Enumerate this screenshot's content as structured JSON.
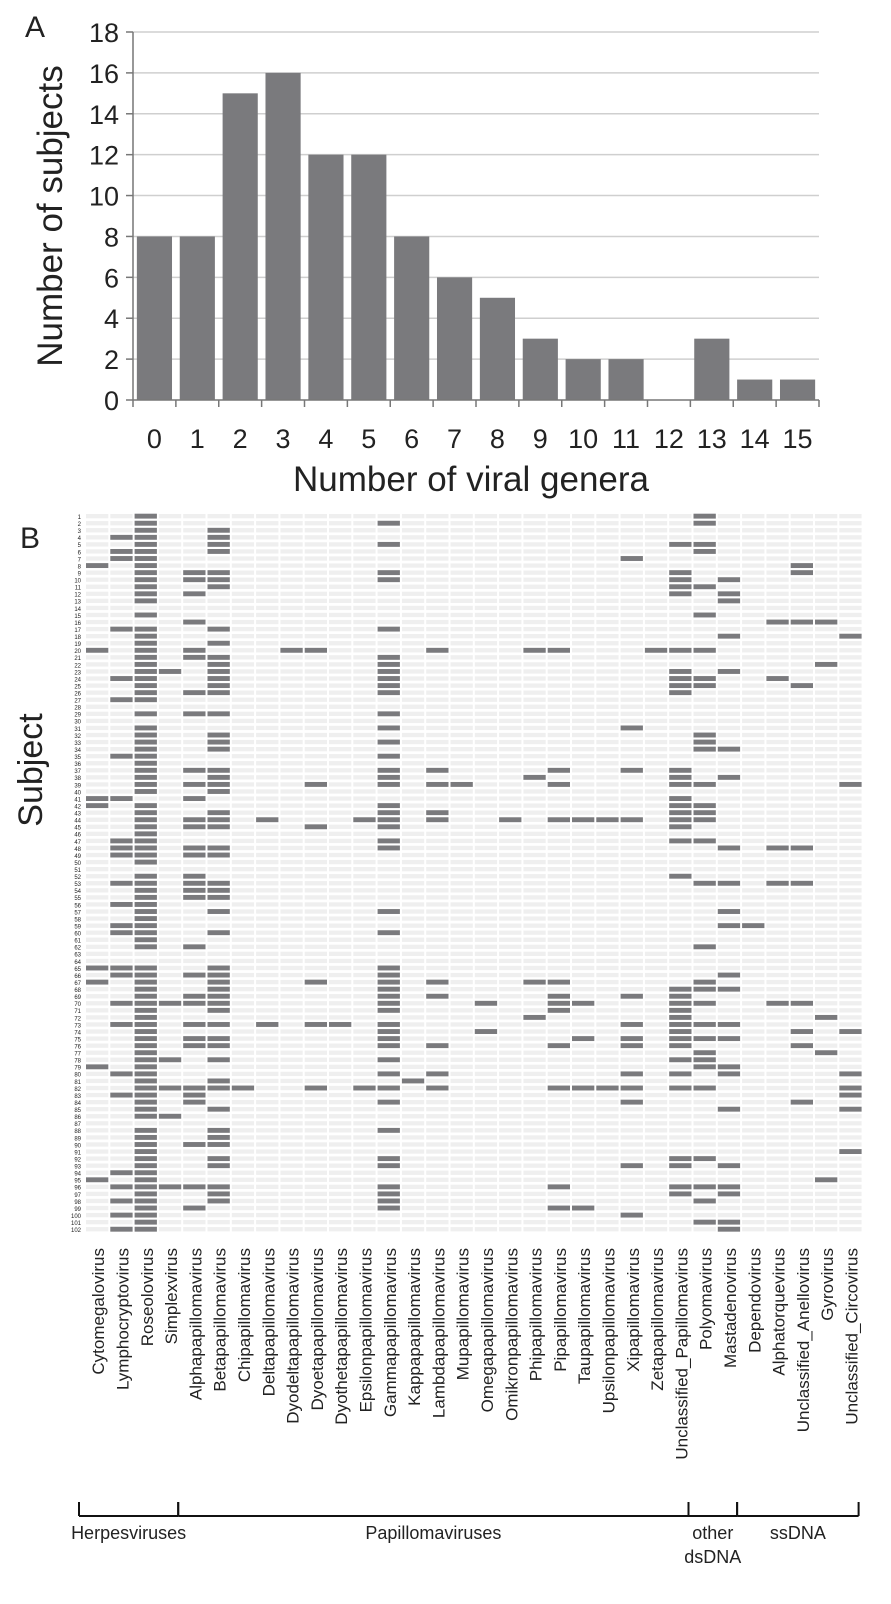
{
  "chart_data": [
    {
      "panel_label": "A",
      "type": "bar",
      "categories": [
        "0",
        "1",
        "2",
        "3",
        "4",
        "5",
        "6",
        "7",
        "8",
        "9",
        "10",
        "11",
        "12",
        "13",
        "14",
        "15"
      ],
      "values": [
        8,
        8,
        15,
        16,
        12,
        12,
        8,
        6,
        5,
        3,
        2,
        2,
        0,
        3,
        1,
        1
      ],
      "xlabel": "Number of viral genera",
      "ylabel": "Number of subjects",
      "ylim": [
        0,
        18
      ],
      "yticks": [
        0,
        2,
        4,
        6,
        8,
        10,
        12,
        14,
        16,
        18
      ],
      "grid": true,
      "bar_color": "#7a7a7d"
    },
    {
      "panel_label": "B",
      "type": "heatmap",
      "ylabel": "Subject",
      "subject_count": 102,
      "genera": [
        "Cytomegalovirus",
        "Lymphocryptovirus",
        "Roseolovirus",
        "Simplexvirus",
        "Alphapapillomavirus",
        "Betapapillomavirus",
        "Chipapillomavirus",
        "Deltapapillomavirus",
        "Dyodeltapapillomavirus",
        "Dyoetapapillomavirus",
        "Dyothetapapillomavirus",
        "Epsilonpapillomavirus",
        "Gammapapillomavirus",
        "Kappapapillomavirus",
        "Lambdapapillomavirus",
        "Mupapillomavirus",
        "Omegapapillomavirus",
        "Omikronpapillomavirus",
        "Phipapillomavirus",
        "Pipapillomavirus",
        "Taupapillomavirus",
        "Upsilonpapillomavirus",
        "Xipapillomavirus",
        "Zetapapillomavirus",
        "Unclassified_Papillomavirus",
        "Polyomavirus",
        "Mastadenovirus",
        "Dependovirus",
        "Alphatorquevirus",
        "Unclassified_Anellovirus",
        "Gyrovirus",
        "Unclassified_Circovirus"
      ],
      "presence_color": "#7a7a7d",
      "absence_color": "#efefef",
      "presence": {
        "0": [
          8,
          20,
          41,
          42,
          65,
          67,
          79,
          95
        ],
        "1": [
          4,
          6,
          7,
          17,
          24,
          27,
          35,
          41,
          47,
          48,
          49,
          53,
          56,
          59,
          60,
          65,
          66,
          70,
          73,
          80,
          83,
          94,
          96,
          98,
          100,
          102
        ],
        "2": [
          1,
          2,
          3,
          4,
          5,
          6,
          7,
          8,
          9,
          10,
          11,
          12,
          13,
          15,
          17,
          18,
          19,
          20,
          21,
          22,
          23,
          24,
          25,
          26,
          27,
          29,
          31,
          32,
          33,
          34,
          35,
          36,
          37,
          38,
          39,
          40,
          42,
          43,
          44,
          45,
          46,
          47,
          48,
          49,
          50,
          52,
          53,
          54,
          55,
          56,
          57,
          58,
          59,
          60,
          61,
          62,
          65,
          66,
          67,
          68,
          69,
          70,
          71,
          72,
          73,
          74,
          75,
          76,
          77,
          78,
          79,
          80,
          81,
          82,
          83,
          84,
          85,
          86,
          88,
          89,
          90,
          91,
          92,
          93,
          94,
          95,
          96,
          97,
          98,
          99,
          100,
          101,
          102
        ],
        "3": [
          23,
          70,
          78,
          82,
          86,
          96
        ],
        "4": [
          9,
          10,
          12,
          16,
          20,
          21,
          26,
          29,
          37,
          39,
          41,
          44,
          45,
          48,
          49,
          52,
          53,
          54,
          55,
          62,
          66,
          69,
          70,
          73,
          75,
          76,
          82,
          83,
          84,
          90,
          96,
          99
        ],
        "5": [
          3,
          4,
          5,
          6,
          9,
          10,
          11,
          17,
          19,
          21,
          22,
          23,
          24,
          25,
          26,
          29,
          32,
          33,
          34,
          37,
          38,
          39,
          40,
          43,
          44,
          45,
          48,
          49,
          53,
          54,
          55,
          57,
          60,
          65,
          66,
          67,
          68,
          69,
          70,
          71,
          73,
          75,
          76,
          78,
          81,
          82,
          85,
          88,
          89,
          90,
          92,
          93,
          96,
          97,
          98
        ],
        "6": [
          82
        ],
        "7": [
          44,
          73
        ],
        "8": [
          20
        ],
        "9": [
          20,
          39,
          45,
          67,
          73,
          82
        ],
        "10": [
          73
        ],
        "11": [
          44,
          82
        ],
        "12": [
          2,
          5,
          9,
          10,
          17,
          21,
          22,
          23,
          24,
          25,
          26,
          29,
          31,
          33,
          35,
          37,
          38,
          39,
          42,
          43,
          44,
          45,
          47,
          48,
          57,
          60,
          65,
          66,
          67,
          68,
          69,
          70,
          71,
          73,
          74,
          75,
          76,
          78,
          80,
          82,
          84,
          88,
          92,
          93,
          96,
          97,
          98,
          99
        ],
        "13": [
          81
        ],
        "14": [
          20,
          37,
          39,
          43,
          44,
          67,
          69,
          76,
          80,
          82
        ],
        "15": [
          39
        ],
        "16": [
          70,
          74
        ],
        "17": [
          44
        ],
        "18": [
          20,
          38,
          67,
          72
        ],
        "19": [
          20,
          37,
          39,
          44,
          67,
          69,
          70,
          71,
          76,
          82,
          96,
          99
        ],
        "20": [
          44,
          70,
          75,
          82,
          99
        ],
        "21": [
          44,
          82
        ],
        "22": [
          7,
          31,
          37,
          44,
          69,
          73,
          75,
          76,
          80,
          82,
          84,
          93,
          100
        ],
        "23": [
          20
        ],
        "24": [
          5,
          9,
          10,
          11,
          12,
          20,
          23,
          24,
          25,
          26,
          37,
          38,
          39,
          41,
          42,
          43,
          44,
          45,
          47,
          52,
          68,
          69,
          70,
          71,
          72,
          73,
          74,
          75,
          76,
          78,
          80,
          82,
          92,
          93,
          96,
          97
        ],
        "25": [
          1,
          2,
          5,
          6,
          11,
          15,
          20,
          24,
          25,
          32,
          33,
          34,
          39,
          42,
          43,
          44,
          47,
          53,
          62,
          67,
          68,
          70,
          73,
          75,
          77,
          78,
          79,
          82,
          92,
          96,
          98,
          101
        ],
        "26": [
          10,
          12,
          13,
          18,
          23,
          34,
          38,
          48,
          53,
          57,
          59,
          66,
          68,
          73,
          75,
          79,
          80,
          85,
          93,
          96,
          97,
          101,
          102
        ],
        "27": [
          59
        ],
        "28": [
          16,
          24,
          48,
          53,
          70
        ],
        "29": [
          8,
          9,
          16,
          25,
          48,
          53,
          70,
          74,
          76,
          84
        ],
        "30": [
          16,
          22,
          72,
          77,
          95
        ],
        "31": [
          18,
          39,
          74,
          80,
          82,
          83,
          85,
          91
        ]
      }
    }
  ],
  "panels": {
    "a": {
      "label": "A"
    },
    "b": {
      "label": "B"
    }
  },
  "groups": [
    {
      "label_lines": [
        "Herpesviruses"
      ],
      "from": 0,
      "to": 3
    },
    {
      "label_lines": [
        "Papillomaviruses"
      ],
      "from": 4,
      "to": 24
    },
    {
      "label_lines": [
        "other",
        "dsDNA"
      ],
      "from": 25,
      "to": 26
    },
    {
      "label_lines": [
        "ssDNA"
      ],
      "from": 27,
      "to": 31
    }
  ]
}
